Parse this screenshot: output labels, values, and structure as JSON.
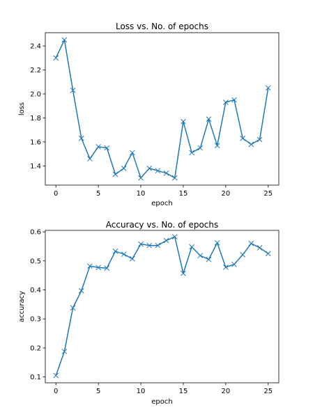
{
  "chart_data": [
    {
      "type": "line",
      "title": "Loss vs. No. of epochs",
      "xlabel": "epoch",
      "ylabel": "loss",
      "xlim": [
        -1.25,
        26.25
      ],
      "ylim": [
        1.24,
        2.51
      ],
      "xticks": [
        0,
        5,
        10,
        15,
        20,
        25
      ],
      "yticks": [
        1.4,
        1.6,
        1.8,
        2.0,
        2.2,
        2.4
      ],
      "ytick_labels": [
        "1.4",
        "1.6",
        "1.8",
        "2.0",
        "2.2",
        "2.4"
      ],
      "grid": false,
      "marker": "x",
      "color": "#1f77b4",
      "x": [
        0,
        1,
        2,
        3,
        4,
        5,
        6,
        7,
        8,
        9,
        10,
        11,
        12,
        13,
        14,
        15,
        16,
        17,
        18,
        19,
        20,
        21,
        22,
        23,
        24,
        25
      ],
      "values": [
        2.3,
        2.45,
        2.03,
        1.63,
        1.46,
        1.56,
        1.55,
        1.33,
        1.38,
        1.51,
        1.3,
        1.38,
        1.36,
        1.34,
        1.3,
        1.77,
        1.51,
        1.55,
        1.79,
        1.57,
        1.93,
        1.95,
        1.63,
        1.58,
        1.62,
        2.05
      ]
    },
    {
      "type": "line",
      "title": "Accuracy vs. No. of epochs",
      "xlabel": "epoch",
      "ylabel": "accuracy",
      "xlim": [
        -1.25,
        26.25
      ],
      "ylim": [
        0.08,
        0.605
      ],
      "xticks": [
        0,
        5,
        10,
        15,
        20,
        25
      ],
      "yticks": [
        0.1,
        0.2,
        0.3,
        0.4,
        0.5,
        0.6
      ],
      "ytick_labels": [
        "0.1",
        "0.2",
        "0.3",
        "0.4",
        "0.5",
        "0.6"
      ],
      "grid": false,
      "marker": "x",
      "color": "#1f77b4",
      "x": [
        0,
        1,
        2,
        3,
        4,
        5,
        6,
        7,
        8,
        9,
        10,
        11,
        12,
        13,
        14,
        15,
        16,
        17,
        18,
        19,
        20,
        21,
        22,
        23,
        24,
        25
      ],
      "values": [
        0.105,
        0.188,
        0.338,
        0.397,
        0.482,
        0.477,
        0.475,
        0.533,
        0.523,
        0.507,
        0.558,
        0.553,
        0.553,
        0.57,
        0.583,
        0.457,
        0.548,
        0.518,
        0.505,
        0.562,
        0.478,
        0.488,
        0.521,
        0.56,
        0.545,
        0.525
      ]
    }
  ]
}
